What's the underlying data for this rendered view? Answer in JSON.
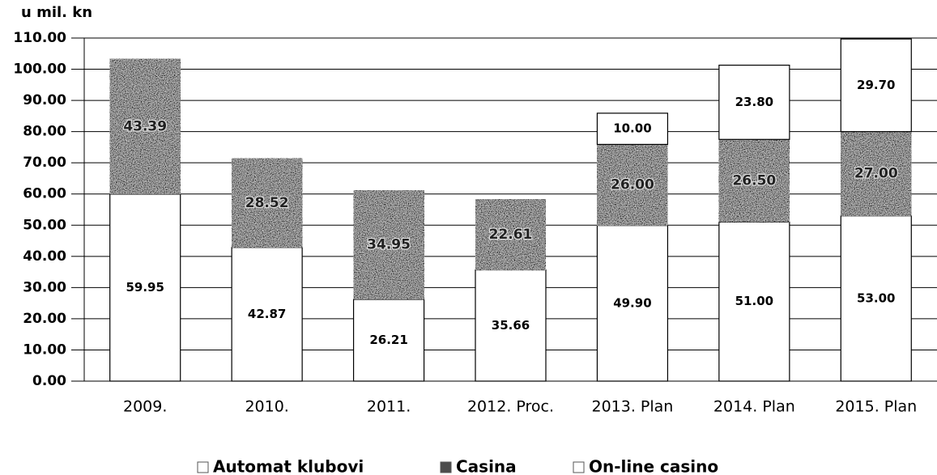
{
  "chart_data": {
    "type": "stacked-bar",
    "y_label": "u mil. kn",
    "categories": [
      "2009.",
      "2010.",
      "2011.",
      "2012. Proc.",
      "2013. Plan",
      "2014. Plan",
      "2015. Plan"
    ],
    "series": [
      {
        "name": "Automat klubovi",
        "color": "#ffffff",
        "values": [
          59.95,
          42.87,
          26.21,
          35.66,
          49.9,
          51,
          53
        ],
        "value_labels": [
          "59.95",
          "42.87",
          "26.21",
          "35.66",
          "49.90",
          "51.00",
          "53.00"
        ]
      },
      {
        "name": "Casina",
        "color": "#4d4d4d",
        "values": [
          43.39,
          28.52,
          34.95,
          22.61,
          26,
          26.5,
          27
        ],
        "value_labels": [
          "43.39",
          "28.52",
          "34.95",
          "22.61",
          "26.00",
          "26.50",
          "27.00"
        ]
      },
      {
        "name": "On-line casino",
        "color": "#ffffff",
        "values": [
          null,
          null,
          null,
          null,
          10,
          23.8,
          29.7
        ],
        "value_labels": [
          null,
          null,
          null,
          null,
          "10.00",
          "23.80",
          "29.70"
        ]
      }
    ],
    "ylim": [
      0,
      110
    ],
    "yticks": [
      {
        "value": 0,
        "label": "0.00"
      },
      {
        "value": 10,
        "label": "10.00"
      },
      {
        "value": 20,
        "label": "20.00"
      },
      {
        "value": 30,
        "label": "30.00"
      },
      {
        "value": 40,
        "label": "40.00"
      },
      {
        "value": 50,
        "label": "50.00"
      },
      {
        "value": 60,
        "label": "60.00"
      },
      {
        "value": 70,
        "label": "70.00"
      },
      {
        "value": 80,
        "label": "80.00"
      },
      {
        "value": 90,
        "label": "90.00"
      },
      {
        "value": 100,
        "label": "100.00"
      },
      {
        "value": 110,
        "label": "110.00"
      }
    ],
    "grid": true,
    "legend": "bottom"
  }
}
